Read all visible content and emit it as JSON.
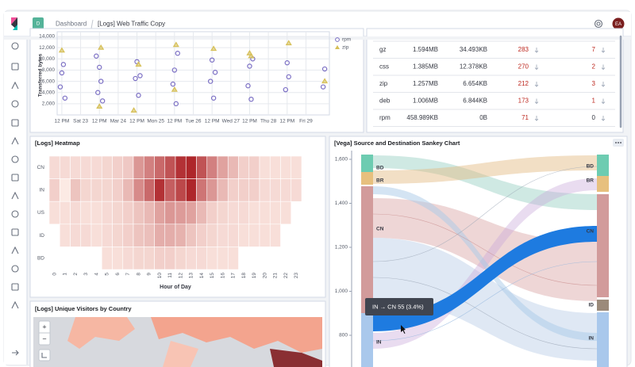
{
  "header": {
    "app_badge": "D",
    "breadcrumb": "Dashboard",
    "title": "[Logs] Web Traffic Copy",
    "avatar": "EA"
  },
  "scatter": {
    "type": "scatter",
    "y_label": "Transferred bytes",
    "xlim": [
      -3,
      171
    ],
    "ylim": [
      0,
      14000
    ],
    "xticks": [
      {
        "value": 0,
        "label": "12 PM"
      },
      {
        "value": 12,
        "label": "Sat 23"
      },
      {
        "value": 24,
        "label": "12 PM"
      },
      {
        "value": 36,
        "label": "Mar 24"
      },
      {
        "value": 48,
        "label": "12 PM"
      },
      {
        "value": 60,
        "label": "Mon 25"
      },
      {
        "value": 72,
        "label": "12 PM"
      },
      {
        "value": 84,
        "label": "Tue 26"
      },
      {
        "value": 96,
        "label": "12 PM"
      },
      {
        "value": 108,
        "label": "Wed 27"
      },
      {
        "value": 120,
        "label": "12 PM"
      },
      {
        "value": 132,
        "label": "Thu 28"
      },
      {
        "value": 144,
        "label": "12 PM"
      },
      {
        "value": 156,
        "label": "Fri 29"
      }
    ],
    "yticks": [
      {
        "value": 2000,
        "label": "2,000"
      },
      {
        "value": 4000,
        "label": "4,000"
      },
      {
        "value": 6000,
        "label": "6,000"
      },
      {
        "value": 8000,
        "label": "8,000"
      },
      {
        "value": 10000,
        "label": "10,000"
      },
      {
        "value": 12000,
        "label": "12,000"
      },
      {
        "value": 14000,
        "label": "14,000"
      }
    ],
    "grid": true,
    "series": [
      {
        "name": "rpm",
        "color": "#7b6fc4",
        "marker": "circle",
        "x": [
          1,
          -1,
          2,
          0,
          24,
          23,
          25,
          26,
          22,
          48,
          47,
          49,
          50,
          72,
          71,
          73,
          74,
          96,
          95,
          97,
          98,
          120,
          119,
          121,
          122,
          144,
          143,
          145,
          168,
          167
        ],
        "y": [
          9000,
          5000,
          3000,
          7500,
          8500,
          4000,
          6000,
          2500,
          10500,
          9500,
          6500,
          3500,
          7000,
          8000,
          5500,
          2000,
          11000,
          9800,
          6000,
          3000,
          7600,
          8700,
          5200,
          2800,
          10000,
          9300,
          4500,
          6800,
          8200,
          5000
        ]
      },
      {
        "name": "zip",
        "color": "#d6bf57",
        "marker": "triangle",
        "x": [
          0,
          25,
          49,
          73,
          97,
          121,
          145,
          168,
          24,
          72,
          120,
          46
        ],
        "y": [
          11500,
          12000,
          9000,
          12500,
          11800,
          10500,
          12800,
          6000,
          1500,
          4500,
          11000,
          800
        ]
      }
    ]
  },
  "table": {
    "rows": [
      [
        "gz",
        "1.594MB",
        "34.493KB",
        283,
        7
      ],
      [
        "css",
        "1.385MB",
        "12.378KB",
        270,
        2
      ],
      [
        "zip",
        "1.257MB",
        "6.654KB",
        212,
        3
      ],
      [
        "deb",
        "1.006MB",
        "6.844KB",
        173,
        1
      ],
      [
        "rpm",
        "458.989KB",
        "0B",
        71,
        0
      ]
    ]
  },
  "heatmap": {
    "type": "heatmap",
    "title": "[Logs] Heatmap",
    "x_label": "Hour of Day",
    "x_categories": [
      0,
      1,
      2,
      3,
      4,
      5,
      6,
      7,
      8,
      9,
      10,
      11,
      12,
      13,
      14,
      15,
      16,
      17,
      18,
      19,
      20,
      21,
      22,
      23
    ],
    "y_categories": [
      "CN",
      "IN",
      "US",
      "ID",
      "BD"
    ],
    "clim": [
      0,
      100
    ],
    "color_range": [
      "#fff1ea",
      "#a50f15"
    ],
    "values": [
      [
        10,
        10,
        10,
        10,
        10,
        12,
        15,
        18,
        40,
        50,
        60,
        70,
        85,
        90,
        70,
        50,
        35,
        25,
        15,
        15,
        8,
        8,
        8,
        8
      ],
      [
        15,
        3,
        20,
        12,
        12,
        12,
        15,
        25,
        45,
        60,
        85,
        65,
        75,
        90,
        55,
        40,
        25,
        15,
        15,
        15,
        10,
        10,
        10,
        10
      ],
      [
        8,
        8,
        10,
        8,
        8,
        10,
        12,
        15,
        20,
        25,
        35,
        40,
        38,
        35,
        25,
        15,
        12,
        10,
        10,
        8,
        8,
        8,
        8,
        null
      ],
      [
        null,
        8,
        10,
        10,
        8,
        10,
        12,
        15,
        20,
        22,
        30,
        30,
        28,
        20,
        15,
        12,
        10,
        10,
        8,
        8,
        8,
        8,
        null,
        null
      ],
      [
        null,
        null,
        null,
        null,
        null,
        8,
        8,
        10,
        12,
        12,
        15,
        15,
        12,
        10,
        10,
        8,
        8,
        8,
        null,
        null,
        null,
        null,
        null,
        null
      ]
    ]
  },
  "sankey": {
    "title": "[Vega] Source and Destination Sankey Chart",
    "ylim": [
      660,
      1620
    ],
    "yticks": [
      {
        "value": 800,
        "label": "800"
      },
      {
        "value": 1000,
        "label": "1,000"
      },
      {
        "value": 1200,
        "label": "1,200"
      },
      {
        "value": 1400,
        "label": "1,400"
      },
      {
        "value": 1600,
        "label": "1,600"
      }
    ],
    "left_nodes": [
      "BD",
      "BR",
      "CN",
      "IN"
    ],
    "right_nodes": [
      "BD",
      "BR",
      "CN",
      "ID",
      "IN"
    ],
    "tooltip": "IN → CN 55 (3.4%)"
  },
  "map": {
    "title": "[Logs] Unique Visitors by Country",
    "zoom_in": "+",
    "zoom_out": "−"
  }
}
